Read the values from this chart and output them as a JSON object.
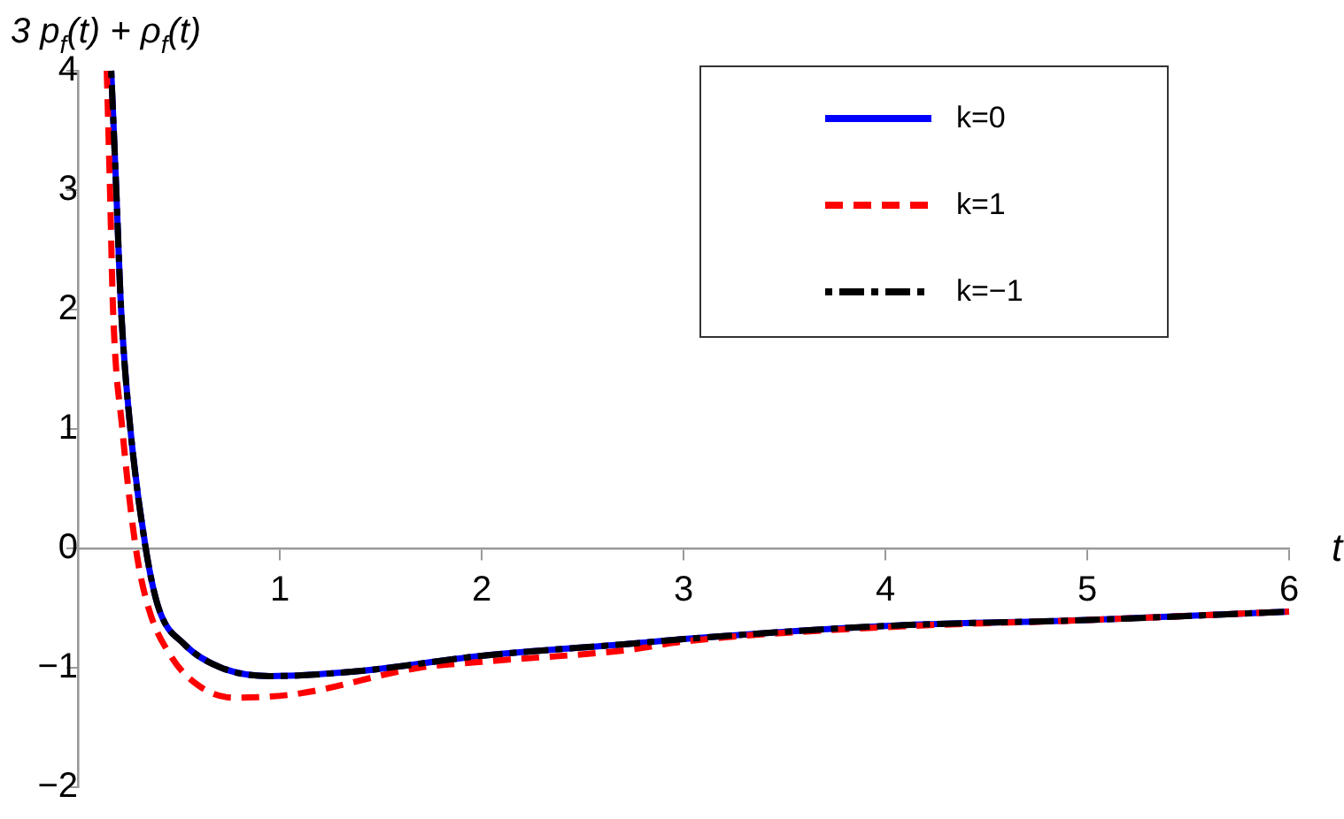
{
  "chart_data": {
    "type": "line",
    "xlabel": "t",
    "ylabel": "3 p$_{f}$(t) + ρ$_{f}$(t)",
    "xlim": [
      0,
      6
    ],
    "ylim": [
      -2,
      4
    ],
    "xticks": [
      1,
      2,
      3,
      4,
      5,
      6
    ],
    "yticks": [
      -2,
      -1,
      0,
      1,
      2,
      3,
      4
    ],
    "grid": false,
    "legend": "top right",
    "marker": "none",
    "series": [
      {
        "name": "k=0",
        "color": "#0000ff",
        "line_style": "solid",
        "x": [
          0.165,
          0.19,
          0.214,
          0.26,
          0.336,
          0.4,
          0.525,
          0.71,
          0.95,
          1.38,
          2,
          2.73,
          3,
          4,
          5,
          6
        ],
        "values": [
          4,
          3,
          2,
          1,
          0,
          -0.5,
          -0.8,
          -1.0,
          -1.07,
          -1.03,
          -0.9,
          -0.8,
          -0.76,
          -0.65,
          -0.6,
          -0.53
        ]
      },
      {
        "name": "k=1",
        "color": "#ff0000",
        "line_style": "dashed",
        "x": [
          0.143,
          0.159,
          0.174,
          0.22,
          0.287,
          0.35,
          0.46,
          0.59,
          0.77,
          1.08,
          1.69,
          2,
          2.73,
          3,
          4,
          5,
          6
        ],
        "values": [
          4,
          3,
          2,
          1,
          0,
          -0.5,
          -0.9,
          -1.14,
          -1.25,
          -1.22,
          -1.0,
          -0.95,
          -0.85,
          -0.78,
          -0.66,
          -0.6,
          -0.53
        ]
      },
      {
        "name": "k=−1",
        "color": "#000000",
        "line_style": "dashdot",
        "x": [
          0.165,
          0.19,
          0.214,
          0.26,
          0.336,
          0.4,
          0.525,
          0.71,
          0.95,
          1.38,
          2,
          2.73,
          3,
          4,
          5,
          6
        ],
        "values": [
          4,
          3,
          2,
          1,
          0,
          -0.5,
          -0.8,
          -1.0,
          -1.07,
          -1.03,
          -0.9,
          -0.8,
          -0.76,
          -0.65,
          -0.6,
          -0.53
        ]
      }
    ]
  }
}
